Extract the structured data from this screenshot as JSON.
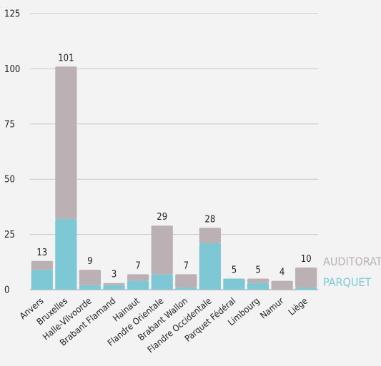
{
  "chart_data": {
    "type": "bar",
    "stacked": true,
    "categories": [
      "Anvers",
      "Bruxelles",
      "Halle-Vilvoorde",
      "Brabant Flamand",
      "Hainaut",
      "Flandre Orientale",
      "Brabant Wallon",
      "Flandre Occidentale",
      "Parquet Fédéral",
      "Limbourg",
      "Namur",
      "Liège"
    ],
    "series": [
      {
        "name": "PARQUET",
        "color": "#7ec8d6",
        "values": [
          9,
          32,
          2,
          2,
          4,
          7,
          1,
          21,
          5,
          3,
          0,
          1
        ]
      },
      {
        "name": "AUDITORAT",
        "color": "#bbb0b3",
        "values": [
          4,
          69,
          7,
          1,
          3,
          22,
          6,
          7,
          0,
          2,
          4,
          9
        ]
      }
    ],
    "totals": [
      "13",
      "101",
      "9",
      "3",
      "7",
      "29",
      "7",
      "28",
      "5",
      "5",
      "4",
      "10"
    ],
    "yticks": [
      "0",
      "25",
      "50",
      "75",
      "100",
      "125"
    ],
    "ylim": [
      0,
      125
    ],
    "grid": true,
    "legend": {
      "position": "right",
      "items": [
        "AUDITORAT",
        "PARQUET"
      ]
    }
  }
}
